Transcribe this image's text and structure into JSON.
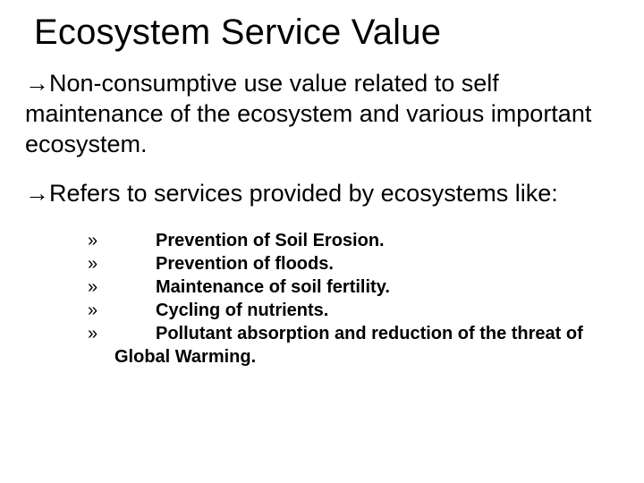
{
  "typography": {
    "title_fontsize": 40,
    "body_fontsize": 27,
    "list_fontsize": 20,
    "list_fontweight": 700,
    "font_family": "Arial"
  },
  "colors": {
    "background": "#ffffff",
    "text": "#000000"
  },
  "title": "Ecosystem Service Value",
  "arrow": "→",
  "paragraphs": [
    "Non-consumptive use value related to self maintenance of the ecosystem and various important ecosystem.",
    "Refers to services provided by ecosystems like:"
  ],
  "list": {
    "marker": "»",
    "items": [
      "Prevention of Soil Erosion.",
      "Prevention of floods.",
      "Maintenance of soil fertility.",
      "Cycling of nutrients.",
      "Pollutant absorption and reduction of the threat of"
    ],
    "wrap_line": "Global Warming."
  }
}
